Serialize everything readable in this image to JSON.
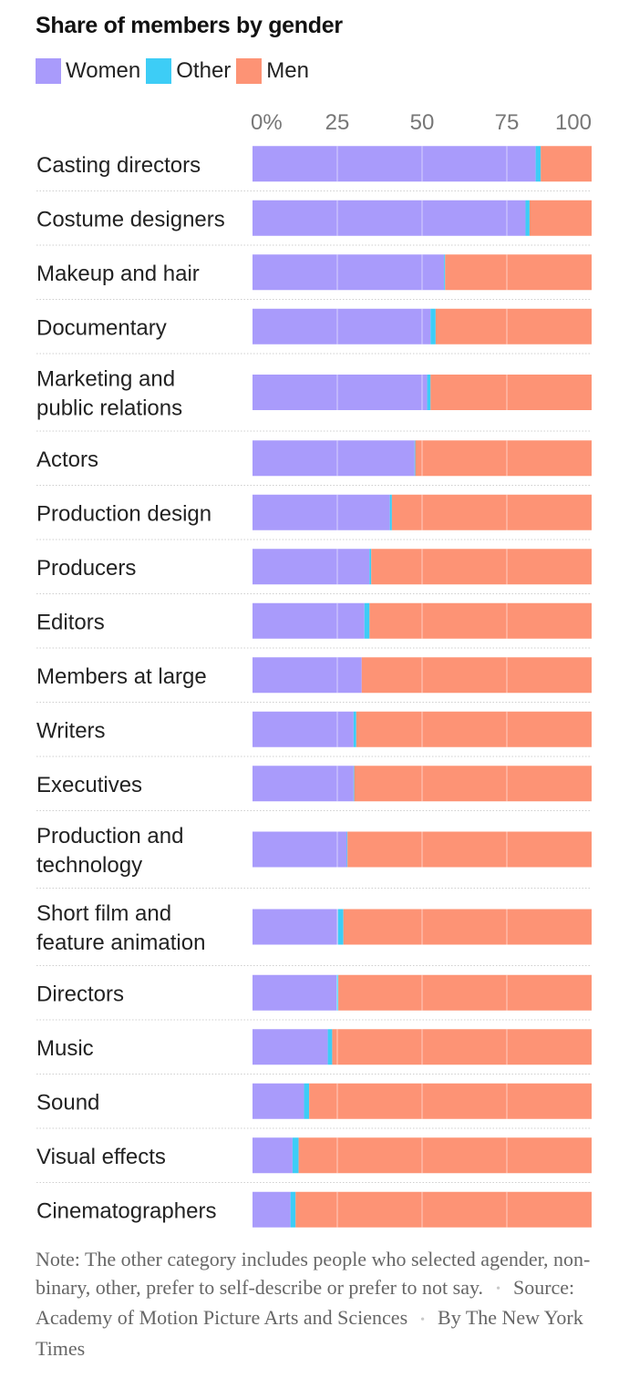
{
  "chart_data": {
    "type": "bar",
    "orientation": "horizontal",
    "stacked": true,
    "title": "Share of members by gender",
    "categories": [
      [
        "Casting directors"
      ],
      [
        "Costume designers"
      ],
      [
        "Makeup and hair"
      ],
      [
        "Documentary"
      ],
      [
        "Marketing and",
        "public relations"
      ],
      [
        "Actors"
      ],
      [
        "Production design"
      ],
      [
        "Producers"
      ],
      [
        "Editors"
      ],
      [
        "Members at large"
      ],
      [
        "Writers"
      ],
      [
        "Executives"
      ],
      [
        "Production and",
        "technology"
      ],
      [
        "Short film and",
        "feature animation"
      ],
      [
        "Directors"
      ],
      [
        "Music"
      ],
      [
        "Sound"
      ],
      [
        "Visual effects"
      ],
      [
        "Cinematographers"
      ]
    ],
    "series": [
      {
        "name": "Women",
        "color": "#a99bfb",
        "values": [
          83.5,
          80.5,
          56.5,
          52.5,
          51.5,
          47.8,
          40.5,
          34.5,
          33.0,
          32.2,
          29.8,
          29.8,
          27.8,
          25.2,
          24.8,
          22.2,
          15.2,
          11.8,
          11.2
        ]
      },
      {
        "name": "Other",
        "color": "#3dcdf6",
        "values": [
          1.5,
          1.2,
          0.3,
          1.5,
          1.0,
          0.2,
          0.6,
          0.5,
          1.5,
          0.0,
          0.8,
          0.2,
          0.2,
          1.6,
          0.5,
          1.3,
          1.5,
          1.8,
          1.5
        ]
      },
      {
        "name": "Men",
        "color": "#fd9375",
        "values": [
          15.0,
          18.3,
          43.2,
          46.0,
          47.5,
          52.0,
          58.9,
          65.0,
          65.5,
          67.8,
          69.4,
          70.0,
          72.0,
          73.2,
          74.7,
          76.5,
          83.3,
          86.4,
          87.3
        ]
      }
    ],
    "xlim": [
      0,
      100
    ],
    "x_ticks": [
      "0%",
      "25",
      "50",
      "75",
      "100"
    ],
    "x_tick_values": [
      0,
      25,
      50,
      75,
      100
    ],
    "grid": true,
    "legend_position": "top-left"
  },
  "footer": {
    "note": "Note: The other category includes people who selected agender, non-binary, other, prefer to self-describe or prefer to not say.",
    "source": "Source: Academy of Motion Picture Arts and Sciences",
    "byline": "By The New York Times",
    "separator": "•"
  }
}
